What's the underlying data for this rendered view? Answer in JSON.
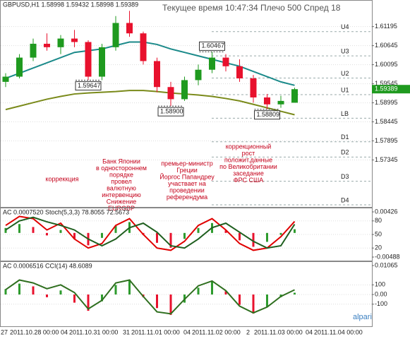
{
  "chart_data": [
    {
      "type": "candlestick",
      "title": "GBPUSD,H1 1.58998 1.59432 1.58998 1.59389",
      "subtitle": "Текущее время 10:47:34 Плечо 500 Спред 18",
      "categories": [
        null,
        null,
        null,
        null,
        null,
        null,
        null,
        null,
        null,
        null,
        null,
        null,
        null,
        null,
        null,
        null,
        null,
        null,
        null,
        null,
        null,
        null
      ],
      "open": [
        1.596,
        1.5975,
        1.603,
        1.607,
        1.606,
        1.6085,
        1.6075,
        1.5975,
        1.606,
        1.613,
        1.61,
        1.602,
        1.5945,
        1.591,
        1.5965,
        1.5995,
        1.603,
        1.6005,
        1.597,
        1.5915,
        1.5895,
        1.58998
      ],
      "high": [
        1.5985,
        1.604,
        1.6085,
        1.61,
        1.6095,
        1.611,
        1.608,
        1.607,
        1.615,
        1.6165,
        1.6105,
        1.603,
        1.596,
        1.5975,
        1.601,
        1.6047,
        1.604,
        1.6025,
        1.598,
        1.5925,
        1.592,
        1.59432
      ],
      "low": [
        1.5945,
        1.597,
        1.602,
        1.605,
        1.604,
        1.606,
        1.5965,
        1.5965,
        1.605,
        1.609,
        1.601,
        1.593,
        1.589,
        1.5905,
        1.595,
        1.5985,
        1.599,
        1.596,
        1.59,
        1.5881,
        1.5885,
        1.58998
      ],
      "close": [
        1.5975,
        1.603,
        1.607,
        1.606,
        1.6085,
        1.6075,
        1.5975,
        1.606,
        1.613,
        1.61,
        1.602,
        1.5945,
        1.591,
        1.5965,
        1.5995,
        1.603,
        1.6005,
        1.597,
        1.5915,
        1.5895,
        1.5905,
        1.59389
      ],
      "colors": {
        "up": "#1f9a1f",
        "down": "#e8112d"
      },
      "moving_averages": [
        {
          "color": "#1b8a8a",
          "values": [
            1.597,
            1.5985,
            1.6,
            1.6015,
            1.603,
            1.6045,
            1.605,
            1.6055,
            1.6065,
            1.6075,
            1.6075,
            1.6068,
            1.6055,
            1.6045,
            1.6035,
            1.6025,
            1.6015,
            1.6005,
            1.599,
            1.5975,
            1.596,
            1.595
          ]
        },
        {
          "color": "#7a8a1a",
          "values": [
            1.588,
            1.589,
            1.59,
            1.591,
            1.5918,
            1.5925,
            1.5928,
            1.593,
            1.5932,
            1.5935,
            1.5935,
            1.5932,
            1.5928,
            1.5925,
            1.5922,
            1.5918,
            1.5912,
            1.5905,
            1.5895,
            1.5885,
            1.5875,
            1.5865
          ]
        }
      ],
      "ylim": [
        1.5605,
        1.618
      ],
      "yticks": [
        1.61195,
        1.60645,
        1.60095,
        1.59545,
        1.58995,
        1.58445,
        1.57895,
        1.57345
      ],
      "grid": true,
      "levels": [
        {
          "label": "U4",
          "value": 1.6105
        },
        {
          "label": "U3",
          "value": 1.6035
        },
        {
          "label": "U2",
          "value": 1.5971
        },
        {
          "label": "U1",
          "value": 1.5923
        },
        {
          "label": "LB",
          "value": 1.5855
        },
        {
          "label": "D1",
          "value": 1.5787
        },
        {
          "label": "D2",
          "value": 1.5743
        },
        {
          "label": "D3",
          "value": 1.5673
        },
        {
          "label": "D4",
          "value": 1.5605
        }
      ],
      "price_labels": [
        {
          "value": 1.59647,
          "label": "1.59647"
        },
        {
          "value": 1.60467,
          "label": "1.60467"
        },
        {
          "value": 1.589,
          "label": "1.58900"
        },
        {
          "value": 1.58809,
          "label": "1.58809"
        }
      ],
      "last_price": 1.59389,
      "annotations": [
        {
          "lines": [
            "корреккция"
          ]
        },
        {
          "lines": [
            "Банк Японии",
            "в одностороннем",
            "порядке",
            "провел",
            "валютную",
            "интервенцию",
            "Снижение",
            "EURGBP"
          ]
        },
        {
          "lines": [
            "премьер-министр",
            "Греции",
            "Йоргос Папандреу",
            "участвает на",
            "проведении",
            "референдума"
          ]
        },
        {
          "lines": [
            "коррекционный",
            "рост",
            "положит.данные",
            "по Великобритании",
            "заседание",
            "ФРС США"
          ]
        }
      ]
    },
    {
      "type": "line",
      "title": "AC 0.0007520 Stoch(5,3,3) 78.8055 72.5673",
      "categories": [
        null,
        null,
        null,
        null,
        null,
        null,
        null,
        null,
        null,
        null,
        null,
        null,
        null,
        null,
        null,
        null,
        null,
        null,
        null,
        null,
        null,
        null
      ],
      "series": [
        {
          "color": "#e00000",
          "values": [
            70,
            90,
            85,
            60,
            75,
            40,
            20,
            30,
            70,
            85,
            50,
            20,
            15,
            35,
            70,
            85,
            60,
            30,
            15,
            20,
            45,
            78.8055
          ]
        },
        {
          "color": "#1f5f1f",
          "values": [
            60,
            80,
            88,
            78,
            70,
            60,
            40,
            25,
            40,
            65,
            75,
            55,
            25,
            20,
            40,
            65,
            75,
            55,
            35,
            20,
            25,
            72.5673
          ]
        },
        {
          "axis": "y2",
          "values": [
            0.001,
            0.0018,
            0.0012,
            -0.0005,
            0.0006,
            -0.0012,
            -0.0025,
            -0.001,
            0.0014,
            0.0022,
            -0.0004,
            -0.002,
            -0.003,
            -0.0012,
            0.001,
            0.002,
            0.0005,
            -0.0015,
            -0.0028,
            -0.0018,
            -0.0004,
            0.000752
          ]
        }
      ],
      "bar_colors": {
        "up": "#2e9b2e",
        "down": "#e8112d"
      },
      "ylim": [
        0,
        100
      ],
      "yticks": [
        80,
        50,
        20
      ],
      "y2lim": [
        -0.00488,
        0.00426
      ],
      "y2ticks": [
        0.00426,
        -0.00488
      ]
    },
    {
      "type": "line",
      "title": "AC 0.0006516 CCI(14) 48.6089",
      "categories": [
        null,
        null,
        null,
        null,
        null,
        null,
        null,
        null,
        null,
        null,
        null,
        null,
        null,
        null,
        null,
        null,
        null,
        null,
        null,
        null,
        null,
        null
      ],
      "series": [
        {
          "color": "#2f6f1f",
          "values": [
            50,
            150,
            120,
            60,
            100,
            20,
            -150,
            -60,
            120,
            150,
            -20,
            -180,
            -200,
            -50,
            90,
            140,
            40,
            -120,
            -190,
            -130,
            -20,
            48.6089
          ]
        },
        {
          "axis": "y2",
          "values": [
            0.002,
            0.004,
            0.003,
            -0.001,
            0.0015,
            -0.003,
            -0.006,
            -0.0025,
            0.0035,
            0.0055,
            -0.001,
            -0.005,
            -0.0075,
            -0.003,
            0.0025,
            0.005,
            0.0012,
            -0.0038,
            -0.007,
            -0.0045,
            -0.001,
            0.0006516
          ]
        }
      ],
      "bar_colors": {
        "up": "#2e9b2e",
        "down": "#e8112d"
      },
      "ylim": [
        -300,
        300
      ],
      "yticks": [
        100,
        {
          "value": 0,
          "label": "0.00"
        },
        -100
      ],
      "y2lim": [
        -0.01065,
        0.01065
      ],
      "y2ticks": [
        0.01065
      ]
    }
  ],
  "time_labels": [
    "27",
    "2011.10.28 00:00",
    "04",
    "2011.10.31 00:00",
    "31",
    "2011.11.01 00:00",
    "04",
    "2011.11.02 00:00",
    "2",
    "2011.11.03 00:00",
    "04",
    "2011.11.04 00:00"
  ],
  "watermark": "alpari"
}
